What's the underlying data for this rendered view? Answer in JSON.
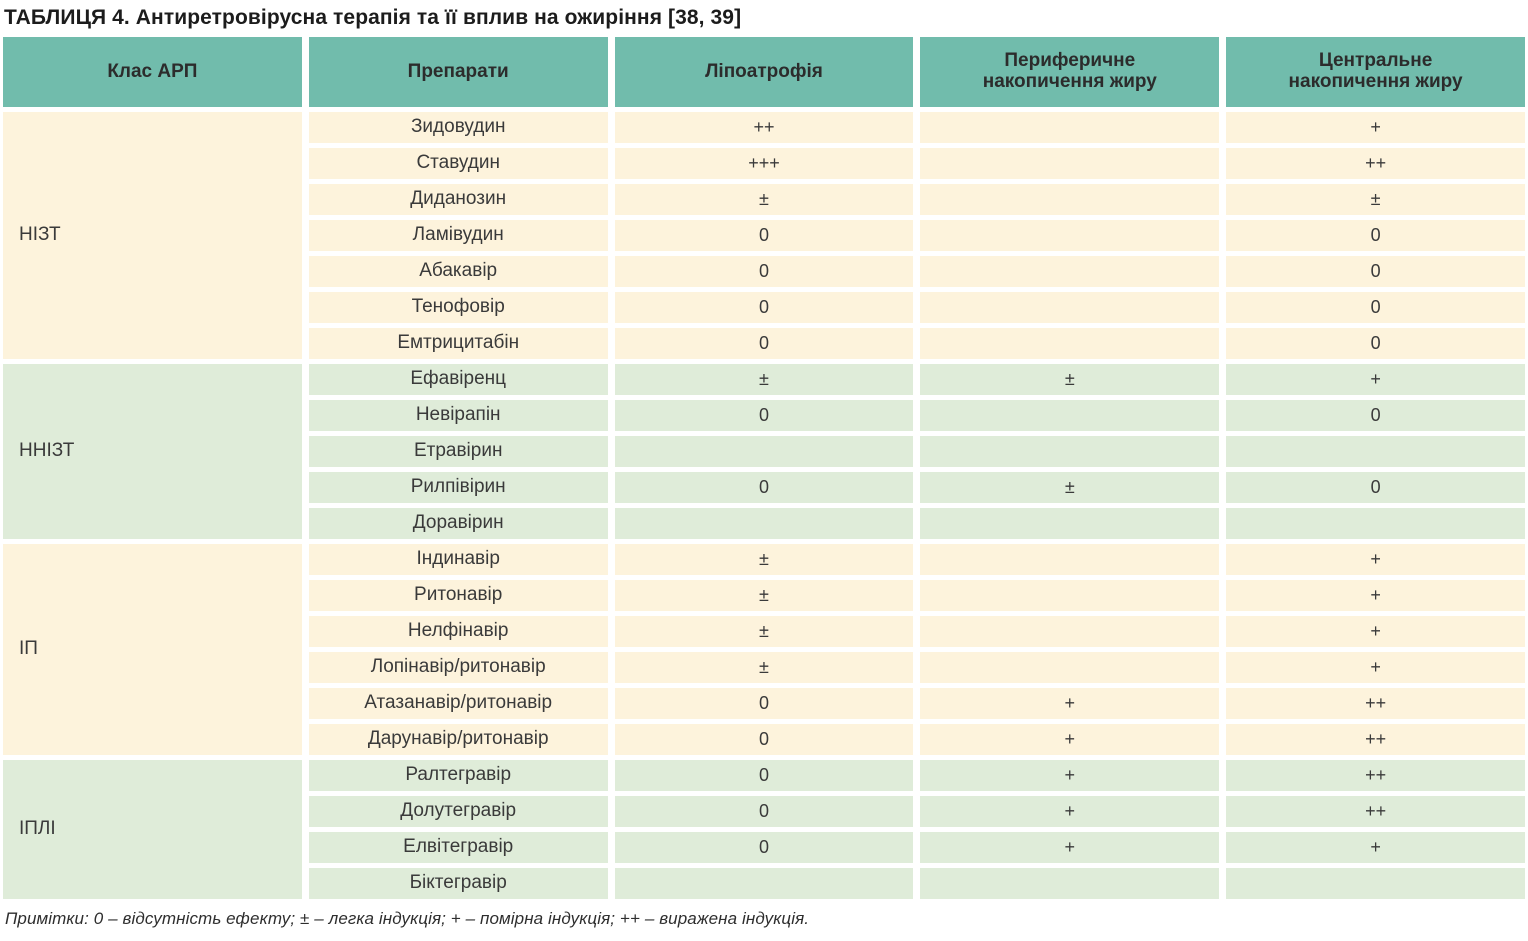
{
  "title": "ТАБЛИЦЯ 4. Антиретровірусна терапія та її вплив на ожиріння [38, 39]",
  "colors": {
    "header_bg": "#71bcac",
    "group_cream_bg": "#fdf3dc",
    "group_green_bg": "#dfecd9",
    "header_text": "#2c2c2c",
    "body_text": "#3a3a3a"
  },
  "table": {
    "columns": [
      "Клас АРП",
      "Препарати",
      "Ліпоатрофія",
      "Периферичне накопичення жиру",
      "Центральне накопичення жиру"
    ],
    "groups": [
      {
        "label": "НІЗТ",
        "tone": "cream",
        "rows": [
          {
            "drug": "Зидовудин",
            "lipoatrophy": "++",
            "peripheral": "",
            "central": "+"
          },
          {
            "drug": "Ставудин",
            "lipoatrophy": "+++",
            "peripheral": "",
            "central": "++"
          },
          {
            "drug": "Диданозин",
            "lipoatrophy": "±",
            "peripheral": "",
            "central": "±"
          },
          {
            "drug": "Ламівудин",
            "lipoatrophy": "0",
            "peripheral": "",
            "central": "0"
          },
          {
            "drug": "Абакавір",
            "lipoatrophy": "0",
            "peripheral": "",
            "central": "0"
          },
          {
            "drug": "Тенофовір",
            "lipoatrophy": "0",
            "peripheral": "",
            "central": "0"
          },
          {
            "drug": "Емтрицитабін",
            "lipoatrophy": "0",
            "peripheral": "",
            "central": "0"
          }
        ]
      },
      {
        "label": "ННІЗТ",
        "tone": "green",
        "rows": [
          {
            "drug": "Ефавіренц",
            "lipoatrophy": "±",
            "peripheral": "±",
            "central": "+"
          },
          {
            "drug": "Невірапін",
            "lipoatrophy": "0",
            "peripheral": "",
            "central": "0"
          },
          {
            "drug": "Етравірин",
            "lipoatrophy": "",
            "peripheral": "",
            "central": ""
          },
          {
            "drug": "Рилпівірин",
            "lipoatrophy": "0",
            "peripheral": "±",
            "central": "0"
          },
          {
            "drug": "Доравірин",
            "lipoatrophy": "",
            "peripheral": "",
            "central": ""
          }
        ]
      },
      {
        "label": "ІП",
        "tone": "cream",
        "rows": [
          {
            "drug": "Індинавір",
            "lipoatrophy": "±",
            "peripheral": "",
            "central": "+"
          },
          {
            "drug": "Ритонавір",
            "lipoatrophy": "±",
            "peripheral": "",
            "central": "+"
          },
          {
            "drug": "Нелфінавір",
            "lipoatrophy": "±",
            "peripheral": "",
            "central": "+"
          },
          {
            "drug": "Лопінавір/ритонавір",
            "lipoatrophy": "±",
            "peripheral": "",
            "central": "+"
          },
          {
            "drug": "Атазанавір/ритонавір",
            "lipoatrophy": "0",
            "peripheral": "+",
            "central": "++"
          },
          {
            "drug": "Дарунавір/ритонавір",
            "lipoatrophy": "0",
            "peripheral": "+",
            "central": "++"
          }
        ]
      },
      {
        "label": "ІПЛІ",
        "tone": "green",
        "rows": [
          {
            "drug": "Ралтегравір",
            "lipoatrophy": "0",
            "peripheral": "+",
            "central": "++"
          },
          {
            "drug": "Долутегравір",
            "lipoatrophy": "0",
            "peripheral": "+",
            "central": "++"
          },
          {
            "drug": "Елвітегравір",
            "lipoatrophy": "0",
            "peripheral": "+",
            "central": "+"
          },
          {
            "drug": "Біктегравір",
            "lipoatrophy": "",
            "peripheral": "",
            "central": ""
          }
        ]
      }
    ]
  },
  "footnote": "Примітки: 0 – відсутність ефекту; ± – легка індукція; + – помірна індукція; ++ – виражена індукція."
}
